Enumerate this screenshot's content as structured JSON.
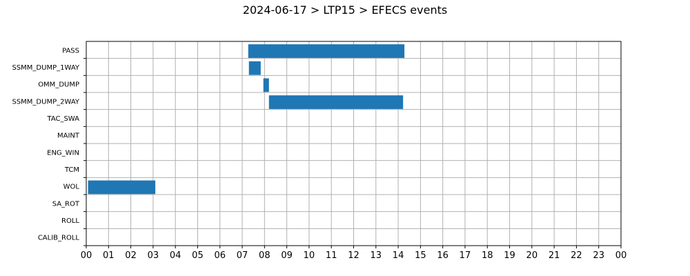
{
  "chart_data": {
    "type": "bar",
    "orientation": "horizontal",
    "title": "2024-06-17 > LTP15 > EFECS events",
    "xlabel": "",
    "ylabel": "",
    "grid": true,
    "xlim": [
      0,
      24
    ],
    "x_tick_labels": [
      "00",
      "01",
      "02",
      "03",
      "04",
      "05",
      "06",
      "07",
      "08",
      "09",
      "10",
      "11",
      "12",
      "13",
      "14",
      "15",
      "16",
      "17",
      "18",
      "19",
      "20",
      "21",
      "22",
      "23",
      "00"
    ],
    "categories": [
      "PASS",
      "SSMM_DUMP_1WAY",
      "OMM_DUMP",
      "SSMM_DUMP_2WAY",
      "TAC_SWA",
      "MAINT",
      "ENG_WIN",
      "TCM",
      "WOL",
      "SA_ROT",
      "ROLL",
      "CALIB_ROLL"
    ],
    "events": [
      {
        "category": "PASS",
        "start": 7.27,
        "end": 14.28
      },
      {
        "category": "SSMM_DUMP_1WAY",
        "start": 7.3,
        "end": 7.83
      },
      {
        "category": "OMM_DUMP",
        "start": 7.95,
        "end": 8.2
      },
      {
        "category": "SSMM_DUMP_2WAY",
        "start": 8.2,
        "end": 14.22
      },
      {
        "category": "WOL",
        "start": 0.08,
        "end": 3.1
      }
    ],
    "bar_color": "#1f77b4"
  }
}
